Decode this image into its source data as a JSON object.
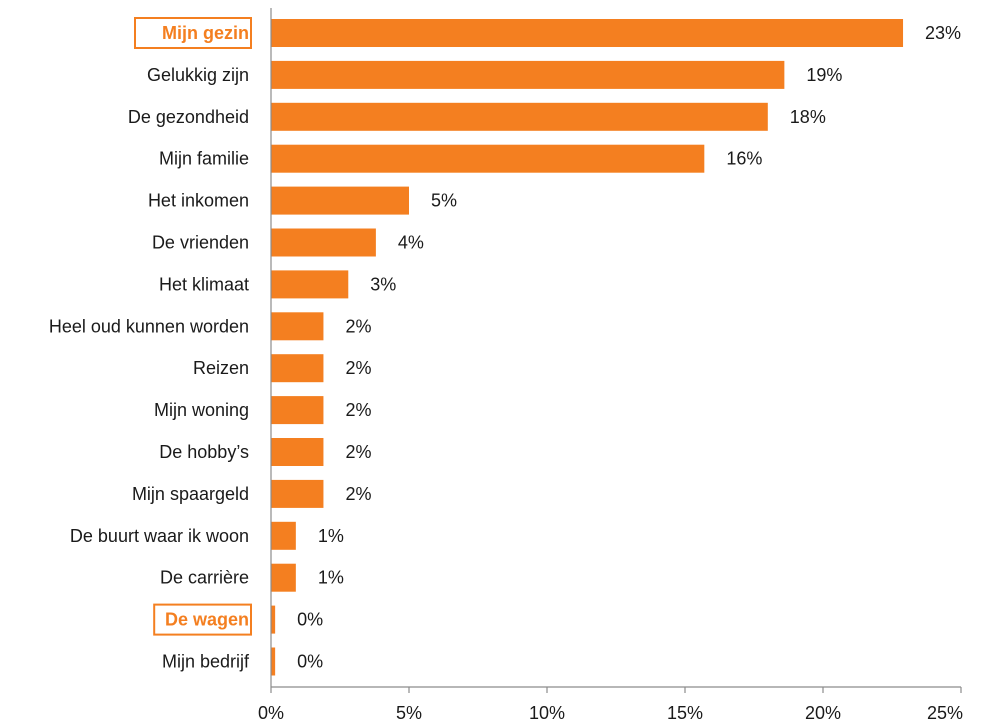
{
  "chart_data": {
    "type": "bar",
    "orientation": "horizontal",
    "categories": [
      "Mijn gezin",
      "Gelukkig zijn",
      "De gezondheid",
      "Mijn familie",
      "Het inkomen",
      "De vrienden",
      "Het klimaat",
      "Heel oud kunnen worden",
      "Reizen",
      "Mijn woning",
      "De hobby’s",
      "Mijn spaargeld",
      "De buurt waar ik woon",
      "De carrière",
      "De wagen",
      "Mijn bedrijf"
    ],
    "values": [
      22.9,
      18.6,
      18.0,
      15.7,
      5.0,
      3.8,
      2.8,
      1.9,
      1.9,
      1.9,
      1.9,
      1.9,
      0.9,
      0.9,
      0.15,
      0.15
    ],
    "value_labels": [
      "23%",
      "19%",
      "18%",
      "16%",
      "5%",
      "4%",
      "3%",
      "2%",
      "2%",
      "2%",
      "2%",
      "2%",
      "1%",
      "1%",
      "0%",
      "0%"
    ],
    "highlighted": [
      "Mijn gezin",
      "De wagen"
    ],
    "xlim": [
      0,
      25
    ],
    "x_ticks": [
      0,
      5,
      10,
      15,
      20,
      25
    ],
    "x_tick_labels": [
      "0%",
      "5%",
      "10%",
      "15%",
      "20%",
      "25%"
    ],
    "title": "",
    "xlabel": "",
    "ylabel": "",
    "grid": false,
    "colors": {
      "bar": "#f47f20",
      "highlight": "#f47f20",
      "axis": "#8c8c8c",
      "text": "#1a1a1a"
    }
  }
}
